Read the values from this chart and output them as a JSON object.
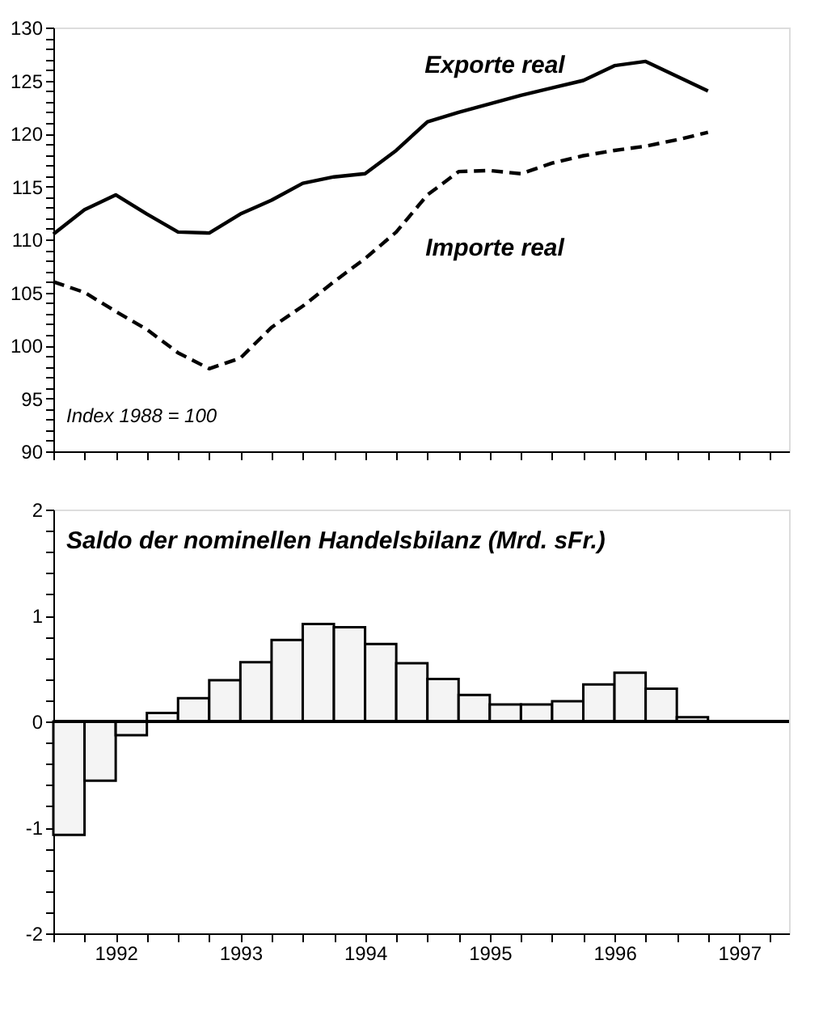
{
  "chart_data": [
    {
      "type": "line",
      "annotations": [
        "Index 1988 = 100"
      ],
      "tick_labels": "y",
      "grid": false,
      "marker": "none",
      "xlim": [
        1992,
        1997.9
      ],
      "xticks": [
        1992,
        1992.25,
        1992.5,
        1992.75,
        1993,
        1993.25,
        1993.5,
        1993.75,
        1994,
        1994.25,
        1994.5,
        1994.75,
        1995,
        1995.25,
        1995.5,
        1995.75,
        1996,
        1996.25,
        1996.5,
        1996.75,
        1997,
        1997.25,
        1997.5,
        1997.75
      ],
      "ylim": [
        90,
        130
      ],
      "yticks": [
        90,
        {
          "value": 91,
          "label": null
        },
        {
          "value": 92,
          "label": null
        },
        {
          "value": 93,
          "label": null
        },
        {
          "value": 94,
          "label": null
        },
        95,
        {
          "value": 96,
          "label": null
        },
        {
          "value": 97,
          "label": null
        },
        {
          "value": 98,
          "label": null
        },
        {
          "value": 99,
          "label": null
        },
        100,
        {
          "value": 101,
          "label": null
        },
        {
          "value": 102,
          "label": null
        },
        {
          "value": 103,
          "label": null
        },
        {
          "value": 104,
          "label": null
        },
        105,
        {
          "value": 106,
          "label": null
        },
        {
          "value": 107,
          "label": null
        },
        {
          "value": 108,
          "label": null
        },
        {
          "value": 109,
          "label": null
        },
        110,
        {
          "value": 111,
          "label": null
        },
        {
          "value": 112,
          "label": null
        },
        {
          "value": 113,
          "label": null
        },
        {
          "value": 114,
          "label": null
        },
        115,
        {
          "value": 116,
          "label": null
        },
        {
          "value": 117,
          "label": null
        },
        {
          "value": 118,
          "label": null
        },
        {
          "value": 119,
          "label": null
        },
        120,
        {
          "value": 121,
          "label": null
        },
        {
          "value": 122,
          "label": null
        },
        {
          "value": 123,
          "label": null
        },
        {
          "value": 124,
          "label": null
        },
        125,
        {
          "value": 126,
          "label": null
        },
        {
          "value": 127,
          "label": null
        },
        {
          "value": 128,
          "label": null
        },
        {
          "value": 129,
          "label": null
        },
        130
      ],
      "x": [
        1992,
        1992.25,
        1992.5,
        1992.75,
        1993,
        1993.25,
        1993.5,
        1993.75,
        1994,
        1994.25,
        1994.5,
        1994.75,
        1995,
        1995.25,
        1995.5,
        1995.75,
        1996,
        1996.25,
        1996.5,
        1996.75,
        1997,
        1997.25
      ],
      "series": [
        {
          "name": "Exporte real",
          "color": "#000000",
          "line_style": "solid",
          "values": [
            110.5,
            112.8,
            114.2,
            112.4,
            110.7,
            110.6,
            112.4,
            113.7,
            115.3,
            115.9,
            116.2,
            118.4,
            121.1,
            122.0,
            122.8,
            123.6,
            124.3,
            125.0,
            126.4,
            126.8,
            125.4,
            124.0
          ]
        },
        {
          "name": "Importe real",
          "color": "#000000",
          "line_style": "dashed",
          "values": [
            106.0,
            105.0,
            103.2,
            101.5,
            99.3,
            97.8,
            98.8,
            101.7,
            103.7,
            106.0,
            108.2,
            110.7,
            114.2,
            116.4,
            116.5,
            116.2,
            117.2,
            117.9,
            118.4,
            118.8,
            119.4,
            120.1
          ]
        }
      ]
    },
    {
      "type": "bar",
      "title": "Saldo der nominellen Handelsbilanz (Mrd. sFr.)",
      "grid": false,
      "xlim": [
        1992,
        1997.9
      ],
      "xticks": [
        {
          "value": 1992,
          "label": null
        },
        {
          "value": 1992.25,
          "label": null
        },
        {
          "value": 1992.5,
          "label": "1992"
        },
        {
          "value": 1992.75,
          "label": null
        },
        {
          "value": 1993,
          "label": null
        },
        {
          "value": 1993.25,
          "label": null
        },
        {
          "value": 1993.5,
          "label": "1993"
        },
        {
          "value": 1993.75,
          "label": null
        },
        {
          "value": 1994,
          "label": null
        },
        {
          "value": 1994.25,
          "label": null
        },
        {
          "value": 1994.5,
          "label": "1994"
        },
        {
          "value": 1994.75,
          "label": null
        },
        {
          "value": 1995,
          "label": null
        },
        {
          "value": 1995.25,
          "label": null
        },
        {
          "value": 1995.5,
          "label": "1995"
        },
        {
          "value": 1995.75,
          "label": null
        },
        {
          "value": 1996,
          "label": null
        },
        {
          "value": 1996.25,
          "label": null
        },
        {
          "value": 1996.5,
          "label": "1996"
        },
        {
          "value": 1996.75,
          "label": null
        },
        {
          "value": 1997,
          "label": null
        },
        {
          "value": 1997.25,
          "label": null
        },
        {
          "value": 1997.5,
          "label": "1997"
        },
        {
          "value": 1997.75,
          "label": null
        }
      ],
      "ylim": [
        -2,
        2
      ],
      "yticks": [
        -2,
        {
          "value": -1.8,
          "label": null
        },
        {
          "value": -1.6,
          "label": null
        },
        {
          "value": -1.4,
          "label": null
        },
        {
          "value": -1.2,
          "label": null
        },
        -1,
        {
          "value": -0.8,
          "label": null
        },
        {
          "value": -0.6,
          "label": null
        },
        {
          "value": -0.4,
          "label": null
        },
        {
          "value": -0.2,
          "label": null
        },
        0,
        {
          "value": 0.2,
          "label": null
        },
        {
          "value": 0.4,
          "label": null
        },
        {
          "value": 0.6,
          "label": null
        },
        {
          "value": 0.8,
          "label": null
        },
        1,
        {
          "value": 1.2,
          "label": null
        },
        {
          "value": 1.4,
          "label": null
        },
        {
          "value": 1.6,
          "label": null
        },
        {
          "value": 1.8,
          "label": null
        },
        2
      ],
      "ref_lines": [
        {
          "axis": "y",
          "value": 0,
          "color": "#000000"
        }
      ],
      "x": [
        1992.125,
        1992.375,
        1992.625,
        1992.875,
        1993.125,
        1993.375,
        1993.625,
        1993.875,
        1994.125,
        1994.375,
        1994.625,
        1994.875,
        1995.125,
        1995.375,
        1995.625,
        1995.875,
        1996.125,
        1996.375,
        1996.625,
        1996.875,
        1997.125
      ],
      "series": [
        {
          "color": "#f4f4f4",
          "values": [
            -1.07,
            -0.56,
            -0.13,
            0.08,
            0.22,
            0.39,
            0.56,
            0.77,
            0.92,
            0.89,
            0.73,
            0.55,
            0.4,
            0.25,
            0.16,
            0.16,
            0.19,
            0.35,
            0.46,
            0.31,
            0.04
          ]
        }
      ]
    }
  ]
}
